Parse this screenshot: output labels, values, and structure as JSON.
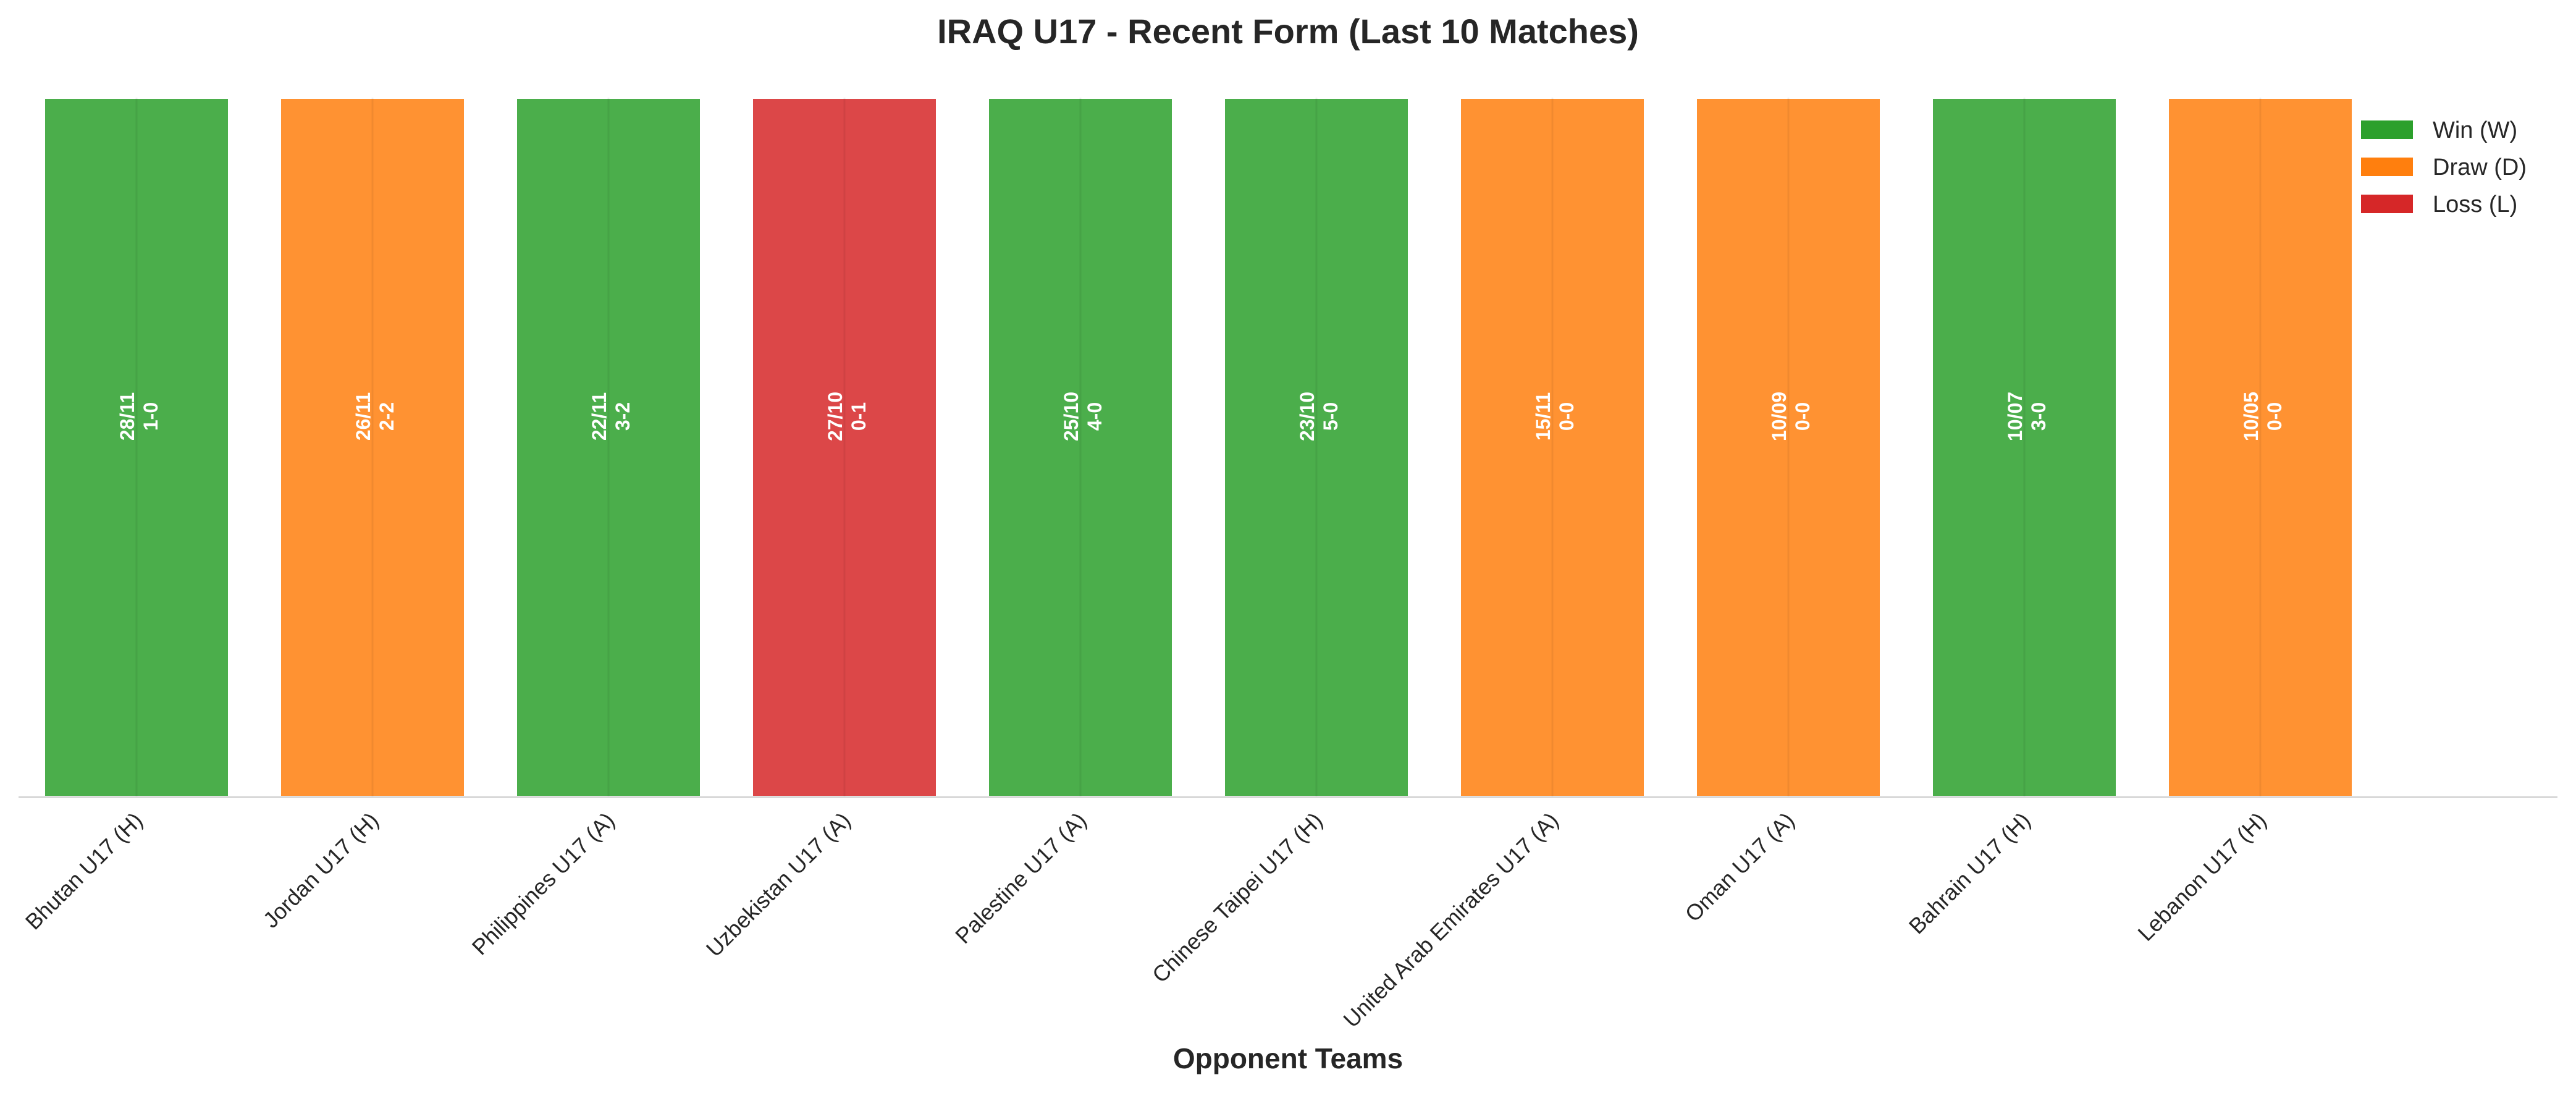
{
  "chart_data": {
    "type": "bar",
    "title": "IRAQ U17 - Recent Form (Last 10 Matches)",
    "xlabel": "Opponent Teams",
    "ylabel": "",
    "ylim": [
      0,
      1
    ],
    "grid": false,
    "legend_position": "top-right",
    "categories": [
      "Bhutan U17 (H)",
      "Jordan U17 (H)",
      "Philippines U17 (A)",
      "Uzbekistan U17 (A)",
      "Palestine U17 (A)",
      "Chinese Taipei U17 (H)",
      "United Arab Emirates U17 (A)",
      "Oman U17 (A)",
      "Bahrain U17 (H)",
      "Lebanon U17 (H)"
    ],
    "values": [
      1,
      1,
      1,
      1,
      1,
      1,
      1,
      1,
      1,
      1
    ],
    "results": [
      "W",
      "D",
      "W",
      "L",
      "W",
      "W",
      "D",
      "D",
      "W",
      "D"
    ],
    "dates": [
      "28/11",
      "26/11",
      "22/11",
      "27/10",
      "25/10",
      "23/10",
      "15/11",
      "10/09",
      "10/07",
      "10/05"
    ],
    "scores": [
      "1-0",
      "2-2",
      "3-2",
      "0-1",
      "4-0",
      "5-0",
      "0-0",
      "0-0",
      "3-0",
      "0-0"
    ],
    "legend": [
      {
        "key": "W",
        "label": "Win (W)",
        "color": "#2ca02c"
      },
      {
        "key": "D",
        "label": "Draw (D)",
        "color": "#ff7f0e"
      },
      {
        "key": "L",
        "label": "Loss (L)",
        "color": "#d62728"
      }
    ]
  }
}
